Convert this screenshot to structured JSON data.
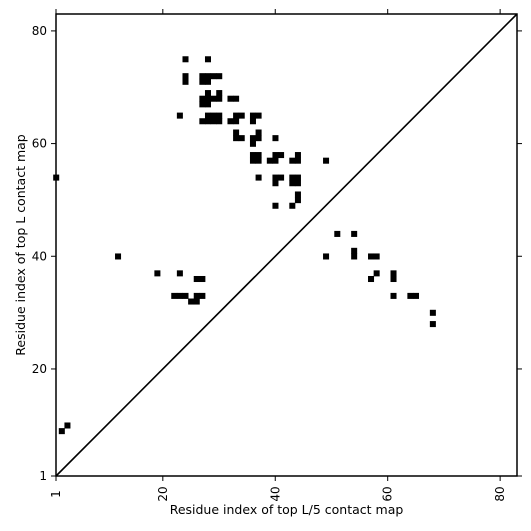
{
  "chart_data": {
    "type": "heatmap",
    "title": "",
    "xlabel": "Residue index of top L/5 contact map",
    "ylabel": "Residue index of top L contact map",
    "xlim": [
      1,
      83
    ],
    "ylim": [
      1,
      83
    ],
    "xticks": [
      1,
      20,
      40,
      60,
      80
    ],
    "yticks": [
      1,
      20,
      40,
      60,
      80
    ],
    "xtick_labels": [
      "1",
      "20",
      "40",
      "60",
      "80"
    ],
    "ytick_labels": [
      "1",
      "20",
      "40",
      "60",
      "80"
    ],
    "grid": false,
    "colors": {
      "cell": "#000000",
      "diagonal": "#000000",
      "frame": "#000000",
      "background": "#ffffff"
    },
    "diagonal": {
      "from": [
        1,
        1
      ],
      "to": [
        83,
        83
      ]
    },
    "upper_cells": [
      [
        1,
        54
      ],
      [
        24,
        75
      ],
      [
        28,
        75
      ],
      [
        24,
        72
      ],
      [
        24,
        71
      ],
      [
        27,
        72
      ],
      [
        28,
        72
      ],
      [
        29,
        72
      ],
      [
        30,
        72
      ],
      [
        27,
        71
      ],
      [
        28,
        71
      ],
      [
        28,
        69
      ],
      [
        30,
        69
      ],
      [
        27,
        68
      ],
      [
        28,
        68
      ],
      [
        29,
        68
      ],
      [
        30,
        68
      ],
      [
        32,
        68
      ],
      [
        33,
        68
      ],
      [
        27,
        67
      ],
      [
        28,
        67
      ],
      [
        23,
        65
      ],
      [
        28,
        65
      ],
      [
        29,
        65
      ],
      [
        30,
        65
      ],
      [
        33,
        65
      ],
      [
        34,
        65
      ],
      [
        36,
        65
      ],
      [
        37,
        65
      ],
      [
        27,
        64
      ],
      [
        28,
        64
      ],
      [
        29,
        64
      ],
      [
        30,
        64
      ],
      [
        32,
        64
      ],
      [
        33,
        64
      ],
      [
        36,
        64
      ],
      [
        33,
        62
      ],
      [
        37,
        62
      ],
      [
        33,
        61
      ],
      [
        34,
        61
      ],
      [
        36,
        61
      ],
      [
        37,
        61
      ],
      [
        40,
        61
      ],
      [
        36,
        60
      ],
      [
        36,
        58
      ],
      [
        37,
        58
      ],
      [
        40,
        58
      ],
      [
        41,
        58
      ],
      [
        44,
        58
      ],
      [
        36,
        57
      ],
      [
        37,
        57
      ],
      [
        39,
        57
      ],
      [
        40,
        57
      ],
      [
        43,
        57
      ],
      [
        44,
        57
      ],
      [
        49,
        57
      ],
      [
        37,
        54
      ],
      [
        40,
        54
      ],
      [
        41,
        54
      ],
      [
        43,
        54
      ],
      [
        44,
        54
      ],
      [
        40,
        53
      ],
      [
        43,
        53
      ],
      [
        44,
        53
      ],
      [
        44,
        51
      ],
      [
        44,
        50
      ],
      [
        40,
        49
      ],
      [
        43,
        49
      ]
    ],
    "lower_cells": [
      [
        12,
        40
      ],
      [
        19,
        37
      ],
      [
        23,
        37
      ],
      [
        26,
        36
      ],
      [
        27,
        36
      ],
      [
        22,
        33
      ],
      [
        23,
        33
      ],
      [
        24,
        33
      ],
      [
        26,
        33
      ],
      [
        27,
        33
      ],
      [
        25,
        32
      ],
      [
        26,
        32
      ],
      [
        51,
        44
      ],
      [
        54,
        44
      ],
      [
        54,
        41
      ],
      [
        54,
        40
      ],
      [
        49,
        40
      ],
      [
        57,
        40
      ],
      [
        58,
        40
      ],
      [
        58,
        37
      ],
      [
        57,
        36
      ],
      [
        61,
        37
      ],
      [
        61,
        36
      ],
      [
        61,
        33
      ],
      [
        64,
        33
      ],
      [
        65,
        33
      ],
      [
        68,
        30
      ],
      [
        68,
        28
      ],
      [
        2,
        9
      ],
      [
        3,
        10
      ]
    ]
  }
}
